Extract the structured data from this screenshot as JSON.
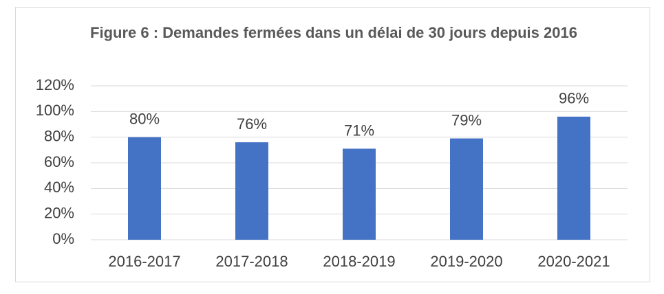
{
  "chart_data": {
    "type": "bar",
    "title": "Figure 6 : Demandes fermées dans un délai de 30 jours depuis 2016",
    "categories": [
      "2016-2017",
      "2017-2018",
      "2018-2019",
      "2019-2020",
      "2020-2021"
    ],
    "values": [
      80,
      76,
      71,
      79,
      96
    ],
    "value_labels": [
      "80%",
      "76%",
      "71%",
      "79%",
      "96%"
    ],
    "color": "#4472c4",
    "ylim": [
      0,
      120
    ],
    "yticks": [
      {
        "value": 0,
        "label": "0%"
      },
      {
        "value": 20,
        "label": "20%"
      },
      {
        "value": 40,
        "label": "40%"
      },
      {
        "value": 60,
        "label": "60%"
      },
      {
        "value": 80,
        "label": "80%"
      },
      {
        "value": 100,
        "label": "100%"
      },
      {
        "value": 120,
        "label": "120%"
      }
    ],
    "grid": true
  }
}
